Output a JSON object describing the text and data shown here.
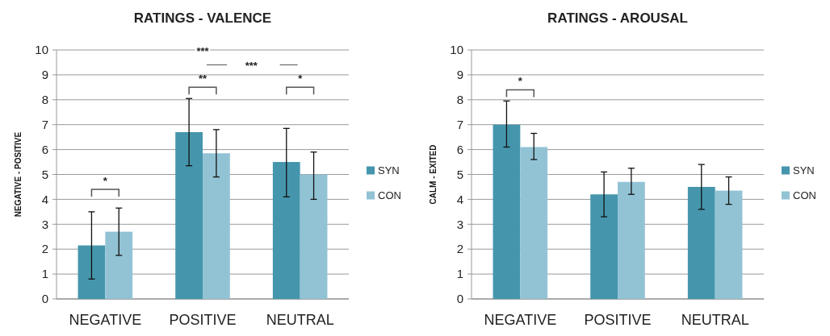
{
  "chart_data": [
    {
      "type": "bar",
      "title": "RATINGS - VALENCE",
      "ylabel": "NEGATIVE - POSITIVE",
      "categories": [
        "NEGATIVE",
        "POSITIVE",
        "NEUTRAL"
      ],
      "series": [
        {
          "name": "SYN",
          "color": "#4596ad",
          "values": [
            2.15,
            6.7,
            5.5
          ],
          "errors": [
            [
              0.8,
              3.5
            ],
            [
              5.35,
              8.05
            ],
            [
              4.1,
              6.85
            ]
          ]
        },
        {
          "name": "CON",
          "color": "#92c3d5",
          "values": [
            2.7,
            5.85,
            5.0
          ],
          "errors": [
            [
              1.75,
              3.65
            ],
            [
              4.9,
              6.8
            ],
            [
              4.0,
              5.9
            ]
          ]
        }
      ],
      "ylim": [
        0,
        10
      ],
      "yticks": [
        0,
        1,
        2,
        3,
        4,
        5,
        6,
        7,
        8,
        9,
        10
      ],
      "grid": "y",
      "legend": "right",
      "annotations": [
        "*",
        "**",
        "*",
        "***",
        "***"
      ]
    },
    {
      "type": "bar",
      "title": "RATINGS - AROUSAL",
      "ylabel": "CALM - EXITED",
      "categories": [
        "NEGATIVE",
        "POSITIVE",
        "NEUTRAL"
      ],
      "series": [
        {
          "name": "SYN",
          "color": "#4596ad",
          "values": [
            7.0,
            4.2,
            4.5
          ],
          "errors": [
            [
              6.1,
              7.95
            ],
            [
              3.3,
              5.1
            ],
            [
              3.6,
              5.4
            ]
          ]
        },
        {
          "name": "CON",
          "color": "#92c3d5",
          "values": [
            6.1,
            4.7,
            4.35
          ],
          "errors": [
            [
              5.6,
              6.65
            ],
            [
              4.2,
              5.25
            ],
            [
              3.8,
              4.9
            ]
          ]
        }
      ],
      "ylim": [
        0,
        10
      ],
      "yticks": [
        0,
        1,
        2,
        3,
        4,
        5,
        6,
        7,
        8,
        9,
        10
      ],
      "grid": "y",
      "legend": "right",
      "annotations": [
        "*"
      ]
    }
  ]
}
